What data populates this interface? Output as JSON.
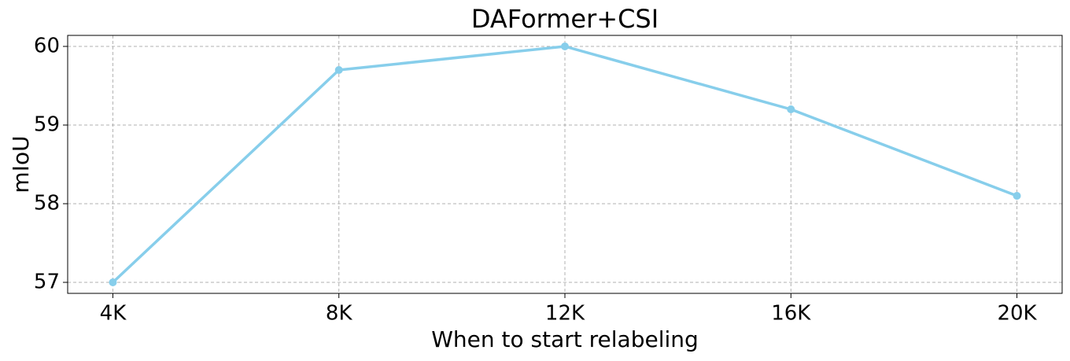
{
  "chart_data": {
    "type": "line",
    "title": "DAFormer+CSI",
    "x_label": "When to start relabeling",
    "y_label": "mIoU",
    "categories": [
      "4K",
      "8K",
      "12K",
      "16K",
      "20K"
    ],
    "series": [
      {
        "color": "#87ceeb",
        "values": [
          57.0,
          59.7,
          60.0,
          59.2,
          58.1
        ]
      }
    ],
    "ylim": [
      56.86,
      60.14
    ],
    "yticks": [
      57,
      58,
      59,
      60
    ],
    "grid": true
  }
}
